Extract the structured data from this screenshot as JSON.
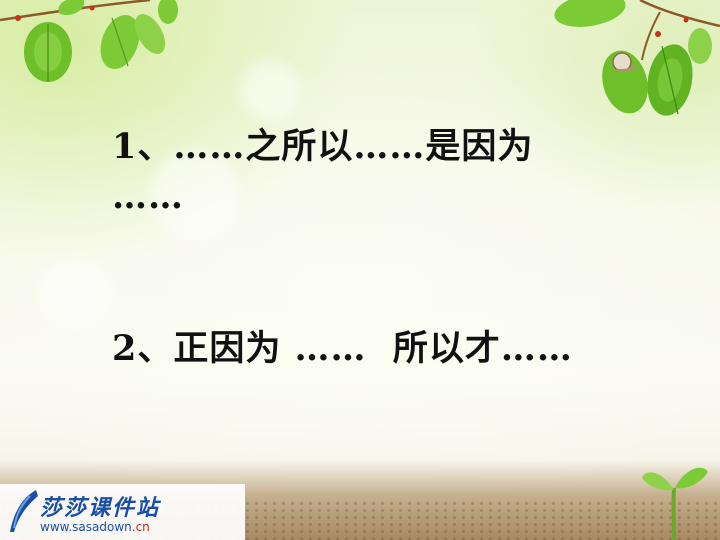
{
  "slide": {
    "line1": "1、……之所以……是因为",
    "line1_cont": "……",
    "line2": "2、正因为 ……  所以才……"
  },
  "logo": {
    "title": "莎莎课件站",
    "url_prefix": "www.sasadown",
    "url_suffix": ".cn"
  },
  "colors": {
    "text": "#111111",
    "leaf_green": "#6fbf2a",
    "logo_blue": "#1a4fa8",
    "logo_red": "#d0201a"
  },
  "icons": [
    "leaf-branch-top-left",
    "leaf-branch-top-right",
    "sprout-icon",
    "logo-quill-icon"
  ]
}
